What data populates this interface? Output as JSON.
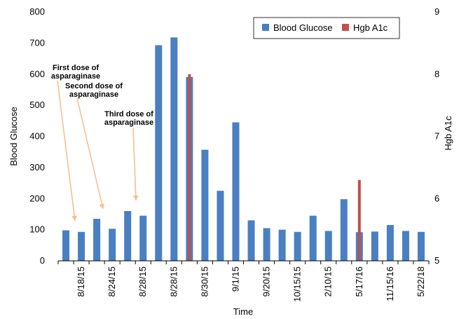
{
  "chart_data": {
    "type": "bar",
    "title": "",
    "xlabel": "Time",
    "ylabel": "Blood Glucose",
    "y2label": "Hgb A1c",
    "ylim": [
      0,
      800
    ],
    "y2lim": [
      5,
      9
    ],
    "yticks": [
      "0",
      "100",
      "200",
      "300",
      "400",
      "500",
      "600",
      "700",
      "800"
    ],
    "y2ticks": [
      "5",
      "6",
      "7",
      "8",
      "9"
    ],
    "grid": false,
    "legend_position": "top-right",
    "categories": [
      "",
      "8/18/15",
      "",
      "8/24/15",
      "",
      "8/28/15",
      "",
      "8/28/15",
      "",
      "8/30/15",
      "",
      "9/1/15",
      "",
      "9/20/15",
      "",
      "10/15/15",
      "",
      "2/10/15",
      "",
      "5/17/16",
      "",
      "11/15/16",
      "",
      "5/22/18"
    ],
    "series": [
      {
        "name": "Blood Glucose",
        "axis": "left",
        "color": "#4a7fc1",
        "values": [
          98,
          93,
          135,
          103,
          160,
          145,
          693,
          718,
          591,
          357,
          225,
          445,
          130,
          105,
          100,
          93,
          145,
          96,
          198,
          92,
          94,
          115,
          96,
          93
        ]
      },
      {
        "name": "Hgb A1c",
        "axis": "right",
        "color": "#c0504d",
        "points": [
          {
            "index": 8,
            "value": 8.0
          },
          {
            "index": 19,
            "value": 6.3
          }
        ]
      }
    ],
    "annotations": [
      {
        "lines": [
          "First dose of",
          "asparaginase"
        ],
        "target_index": 0
      },
      {
        "lines": [
          "Second dose of",
          "asparaginase"
        ],
        "target_index": 2
      },
      {
        "lines": [
          "Third dose of",
          "asparaginase"
        ],
        "target_index": 4
      }
    ]
  }
}
